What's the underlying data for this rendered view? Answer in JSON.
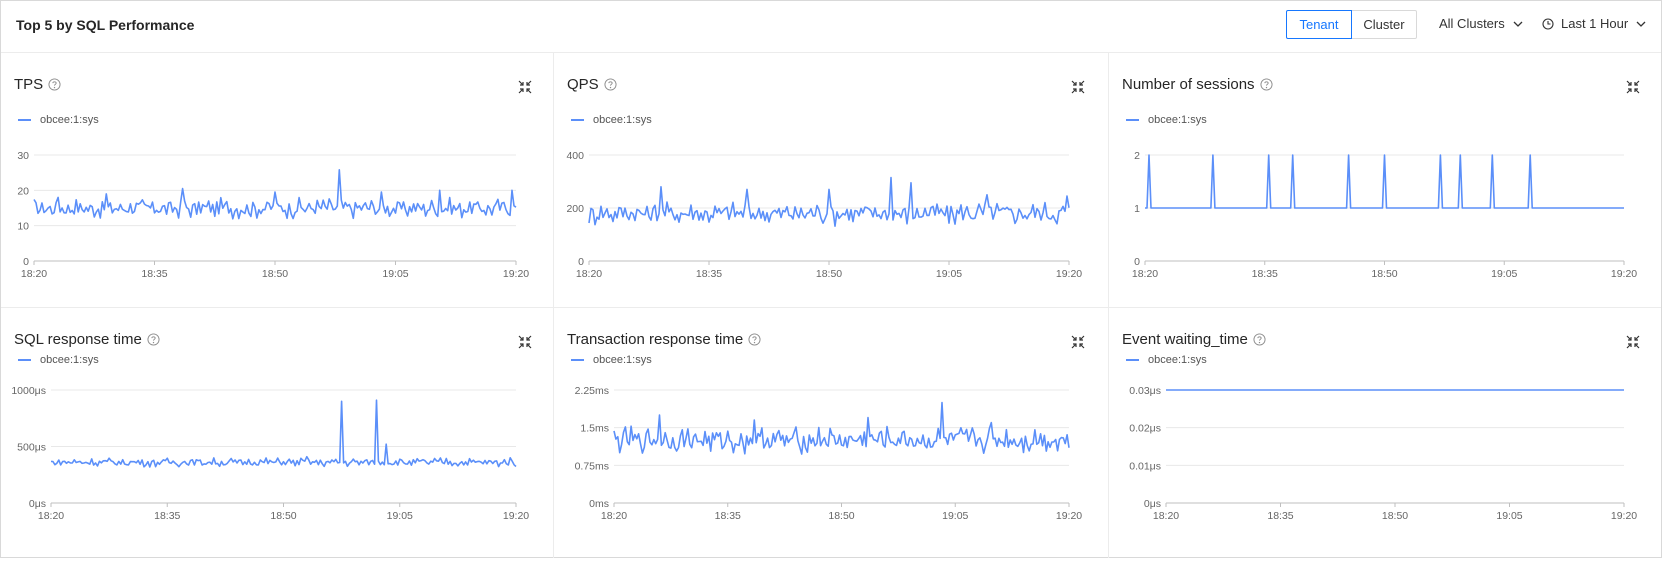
{
  "header": {
    "title": "Top 5 by SQL Performance",
    "tabs": [
      {
        "label": "Tenant",
        "active": true
      },
      {
        "label": "Cluster",
        "active": false
      }
    ],
    "cluster_select": "All Clusters",
    "time_select": "Last 1 Hour"
  },
  "colors": {
    "accent": "#1677ff",
    "series": "#5b8ff9"
  },
  "icons": {
    "help": "question-circle-icon",
    "expand": "fullscreen-exit-icon",
    "time": "clock-icon",
    "dropdown": "chevron-down-icon"
  },
  "panels": [
    {
      "title": "TPS",
      "legend": "obcee:1:sys",
      "chart_data": {
        "type": "line",
        "x_ticks": [
          "18:20",
          "18:35",
          "18:50",
          "19:05",
          "19:20"
        ],
        "y_ticks": [
          "0",
          "10",
          "20",
          "30"
        ],
        "y_tick_values": [
          0,
          10,
          20,
          30
        ],
        "ylim": [
          0,
          30
        ],
        "series": [
          {
            "name": "obcee:1:sys",
            "base": 15,
            "amplitude": 2.2,
            "spikes": [
              [
                0.05,
                18
              ],
              [
                0.15,
                19
              ],
              [
                0.31,
                20.5
              ],
              [
                0.5,
                19.5
              ],
              [
                0.635,
                25.8
              ],
              [
                0.72,
                19.5
              ],
              [
                0.84,
                20
              ],
              [
                0.99,
                20
              ]
            ]
          }
        ]
      }
    },
    {
      "title": "QPS",
      "legend": "obcee:1:sys",
      "chart_data": {
        "type": "line",
        "x_ticks": [
          "18:20",
          "18:35",
          "18:50",
          "19:05",
          "19:20"
        ],
        "y_ticks": [
          "0",
          "200",
          "400"
        ],
        "y_tick_values": [
          0,
          200,
          400
        ],
        "ylim": [
          0,
          400
        ],
        "series": [
          {
            "name": "obcee:1:sys",
            "base": 180,
            "amplitude": 35,
            "spikes": [
              [
                0.15,
                280
              ],
              [
                0.33,
                270
              ],
              [
                0.5,
                270
              ],
              [
                0.63,
                315
              ],
              [
                0.67,
                295
              ],
              [
                0.83,
                250
              ],
              [
                0.995,
                245
              ]
            ]
          }
        ]
      }
    },
    {
      "title": "Number of sessions",
      "legend": "obcee:1:sys",
      "chart_data": {
        "type": "line",
        "x_ticks": [
          "18:20",
          "18:35",
          "18:50",
          "19:05",
          "19:20"
        ],
        "y_ticks": [
          "0",
          "1",
          "2"
        ],
        "y_tick_values": [
          0,
          1,
          2
        ],
        "ylim": [
          0,
          2
        ],
        "series": [
          {
            "name": "obcee:1:sys",
            "base": 1,
            "amplitude": 0,
            "spikes": [
              [
                0.01,
                2
              ],
              [
                0.14,
                2
              ],
              [
                0.26,
                2
              ],
              [
                0.31,
                2
              ],
              [
                0.425,
                2
              ],
              [
                0.5,
                2
              ],
              [
                0.615,
                2
              ],
              [
                0.66,
                2
              ],
              [
                0.725,
                2
              ],
              [
                0.805,
                2
              ]
            ]
          }
        ]
      }
    },
    {
      "title": "SQL response time",
      "legend": "obcee:1:sys",
      "chart_data": {
        "type": "line",
        "x_ticks": [
          "18:20",
          "18:35",
          "18:50",
          "19:05",
          "19:20"
        ],
        "y_ticks": [
          "0μs",
          "500μs",
          "1000μs"
        ],
        "y_tick_values": [
          0,
          500,
          1000
        ],
        "ylim": [
          0,
          1000
        ],
        "series": [
          {
            "name": "obcee:1:sys",
            "base": 360,
            "amplitude": 30,
            "spikes": [
              [
                0.625,
                900
              ],
              [
                0.7,
                910
              ],
              [
                0.72,
                520
              ],
              [
                0.55,
                410
              ]
            ]
          }
        ]
      }
    },
    {
      "title": "Transaction response time",
      "legend": "obcee:1:sys",
      "chart_data": {
        "type": "line",
        "x_ticks": [
          "18:20",
          "18:35",
          "18:50",
          "19:05",
          "19:20"
        ],
        "y_ticks": [
          "0ms",
          "0.75ms",
          "1.5ms",
          "2.25ms"
        ],
        "y_tick_values": [
          0,
          0.75,
          1.5,
          2.25
        ],
        "ylim": [
          0,
          2.25
        ],
        "series": [
          {
            "name": "obcee:1:sys",
            "base": 1.25,
            "amplitude": 0.2,
            "spikes": [
              [
                0.1,
                1.75
              ],
              [
                0.31,
                1.65
              ],
              [
                0.56,
                1.7
              ],
              [
                0.72,
                2.0
              ],
              [
                0.83,
                1.6
              ]
            ]
          }
        ]
      }
    },
    {
      "title": "Event waiting_time",
      "legend": "obcee:1:sys",
      "chart_data": {
        "type": "line",
        "x_ticks": [
          "18:20",
          "18:35",
          "18:50",
          "19:05",
          "19:20"
        ],
        "y_ticks": [
          "0μs",
          "0.01μs",
          "0.02μs",
          "0.03μs"
        ],
        "y_tick_values": [
          0,
          0.01,
          0.02,
          0.03
        ],
        "ylim": [
          0,
          0.03
        ],
        "series": [
          {
            "name": "obcee:1:sys",
            "base": 0.03,
            "amplitude": 0,
            "spikes": []
          }
        ]
      }
    }
  ]
}
